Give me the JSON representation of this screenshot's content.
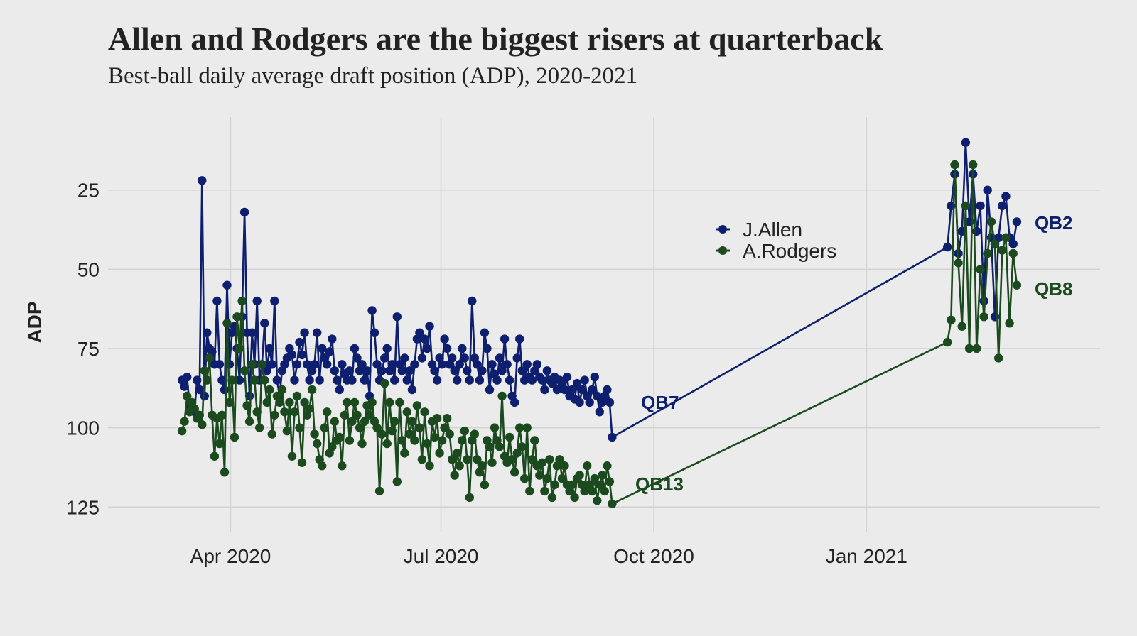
{
  "chart_data": {
    "type": "line",
    "title": "Allen and Rodgers are the biggest risers at quarterback",
    "subtitle": "Best-ball daily average draft position (ADP), 2020-2021",
    "xlabel": "",
    "ylabel": "ADP",
    "y_reversed": true,
    "ylim": [
      2,
      133
    ],
    "y_ticks": [
      25,
      50,
      75,
      100,
      125
    ],
    "xlim": [
      "2020-02-08",
      "2021-04-12"
    ],
    "x_ticks": [
      {
        "date": "2020-04-01",
        "label": "Apr 2020"
      },
      {
        "date": "2020-07-01",
        "label": "Jul 2020"
      },
      {
        "date": "2020-10-01",
        "label": "Oct 2020"
      },
      {
        "date": "2021-01-01",
        "label": "Jan 2021"
      }
    ],
    "grid": true,
    "legend_position": "top-right",
    "series": [
      {
        "name": "J.Allen",
        "color": "#0d1f6e",
        "end_label": "QB7",
        "end_label2": "QB2",
        "segment1": {
          "start": "2020-03-11",
          "end": "2020-09-13",
          "values": [
            85,
            87,
            84,
            93,
            94,
            95,
            85,
            88,
            22,
            90,
            70,
            75,
            76,
            80,
            60,
            80,
            85,
            88,
            55,
            80,
            70,
            68,
            75,
            85,
            65,
            32,
            70,
            90,
            70,
            80,
            60,
            85,
            80,
            67,
            82,
            75,
            80,
            60,
            85,
            90,
            82,
            80,
            78,
            75,
            77,
            85,
            80,
            73,
            77,
            70,
            80,
            85,
            82,
            80,
            70,
            85,
            75,
            78,
            80,
            76,
            72,
            82,
            85,
            88,
            80,
            83,
            85,
            82,
            85,
            75,
            78,
            82,
            80,
            85,
            82,
            90,
            63,
            70,
            80,
            85,
            82,
            78,
            75,
            82,
            80,
            85,
            65,
            80,
            82,
            78,
            85,
            82,
            88,
            80,
            72,
            70,
            78,
            72,
            75,
            68,
            80,
            82,
            85,
            78,
            80,
            72,
            75,
            80,
            78,
            82,
            85,
            80,
            75,
            78,
            82,
            85,
            60,
            78,
            80,
            85,
            82,
            70,
            75,
            88,
            80,
            83,
            85,
            78,
            82,
            72,
            80,
            85,
            90,
            92,
            78,
            72,
            82,
            85,
            80,
            84,
            85,
            82,
            80,
            84,
            85,
            88,
            82,
            85,
            86,
            84,
            88,
            85,
            86,
            88,
            84,
            90,
            88,
            91,
            86,
            92,
            88,
            85,
            90,
            92,
            88,
            84,
            90,
            95,
            92,
            90,
            88,
            92,
            103
          ]
        },
        "segment2": {
          "start": "2021-02-05",
          "end": "2021-03-07",
          "values": [
            43,
            30,
            20,
            45,
            38,
            10,
            35,
            20,
            38,
            30,
            60,
            25,
            40,
            65,
            40,
            30,
            27,
            40,
            42,
            35
          ]
        }
      },
      {
        "name": "A.Rodgers",
        "color": "#1c4a1f",
        "end_label": "QB13",
        "end_label2": "QB8",
        "segment1": {
          "start": "2020-03-11",
          "end": "2020-09-13",
          "values": [
            101,
            98,
            90,
            95,
            92,
            94,
            97,
            96,
            99,
            82,
            85,
            78,
            96,
            109,
            97,
            105,
            96,
            114,
            67,
            92,
            85,
            103,
            65,
            75,
            60,
            82,
            93,
            98,
            80,
            85,
            95,
            100,
            80,
            85,
            92,
            88,
            102,
            96,
            90,
            92,
            88,
            95,
            101,
            92,
            109,
            95,
            90,
            100,
            111,
            92,
            96,
            94,
            88,
            102,
            105,
            110,
            112,
            100,
            95,
            108,
            106,
            98,
            104,
            103,
            112,
            96,
            92,
            104,
            98,
            92,
            96,
            100,
            105,
            98,
            93,
            96,
            92,
            98,
            100,
            120,
            102,
            86,
            105,
            92,
            101,
            98,
            117,
            92,
            104,
            108,
            95,
            102,
            98,
            104,
            93,
            100,
            110,
            95,
            105,
            112,
            98,
            103,
            97,
            108,
            104,
            100,
            97,
            102,
            110,
            115,
            108,
            112,
            104,
            101,
            110,
            122,
            104,
            102,
            110,
            114,
            112,
            118,
            104,
            106,
            111,
            100,
            104,
            106,
            90,
            109,
            111,
            103,
            110,
            114,
            108,
            100,
            106,
            116,
            100,
            120,
            110,
            104,
            112,
            115,
            111,
            120,
            116,
            110,
            122,
            118,
            112,
            110,
            116,
            112,
            118,
            120,
            118,
            122,
            116,
            115,
            118,
            120,
            112,
            118,
            120,
            116,
            123,
            118,
            115,
            120,
            112,
            117,
            124
          ]
        },
        "segment2": {
          "start": "2021-02-05",
          "end": "2021-03-07",
          "values": [
            73,
            66,
            17,
            48,
            68,
            30,
            75,
            17,
            75,
            50,
            65,
            45,
            35,
            42,
            78,
            44,
            40,
            67,
            45,
            55
          ]
        }
      }
    ]
  }
}
